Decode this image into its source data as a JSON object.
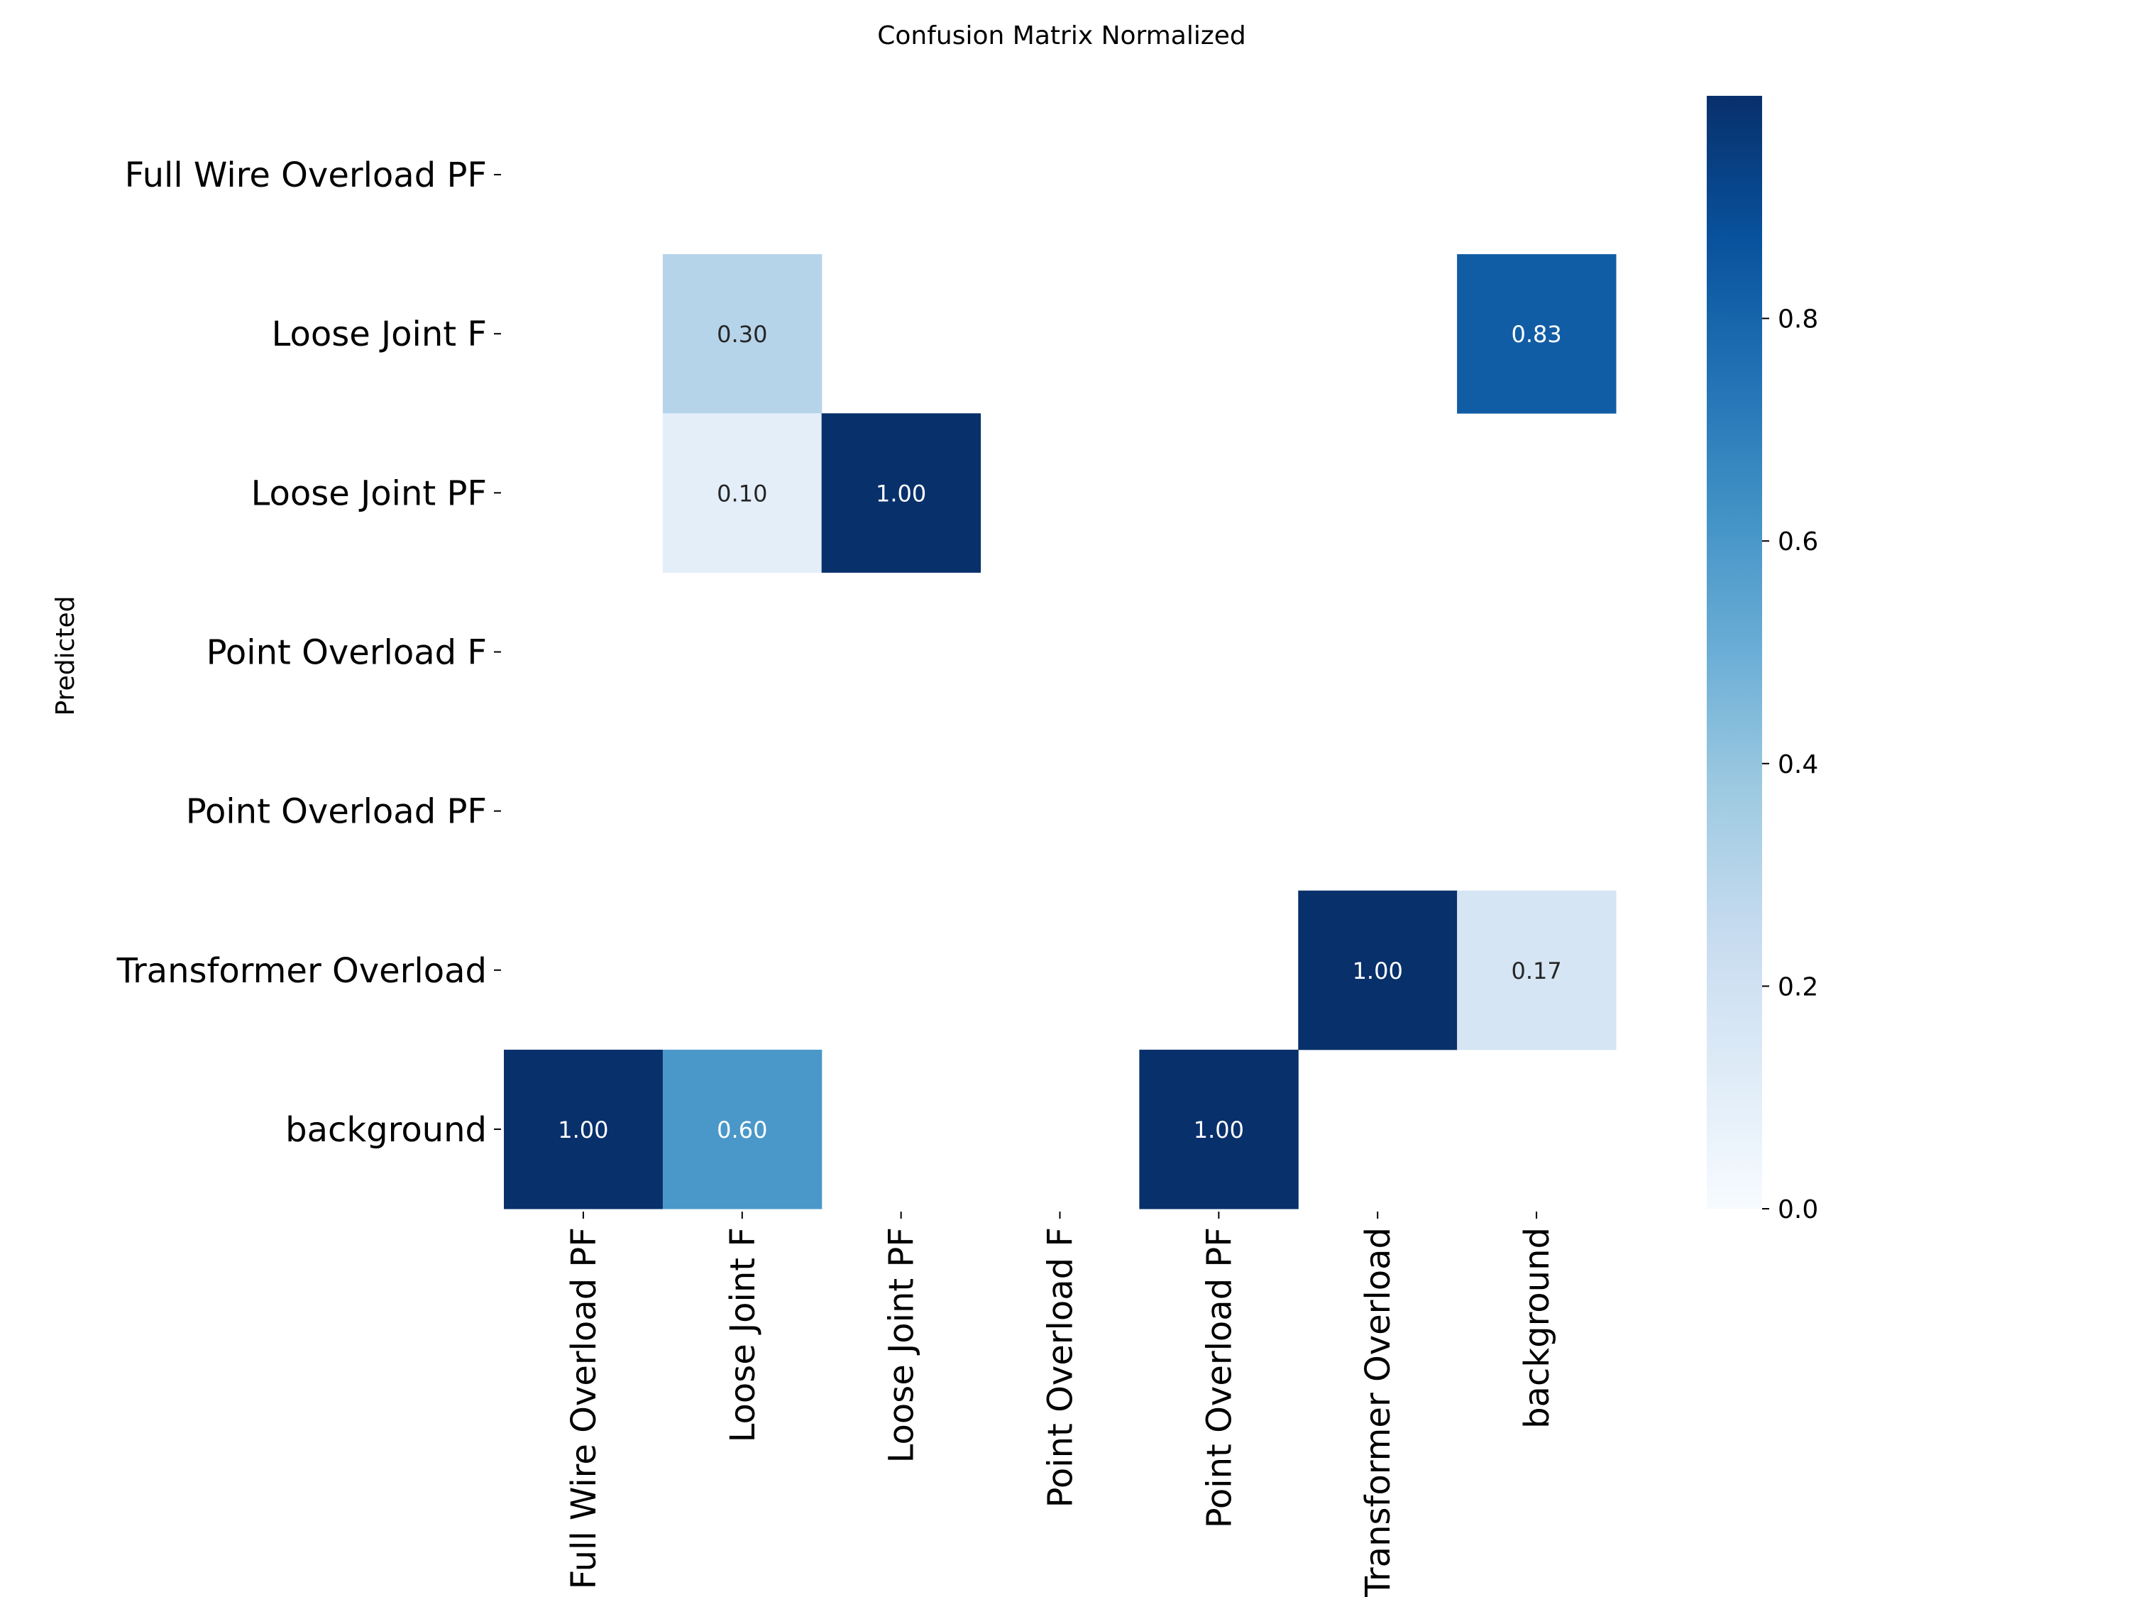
{
  "chart_data": {
    "type": "heatmap",
    "title": "Confusion Matrix Normalized",
    "xlabel": "",
    "ylabel": "Predicted",
    "x_categories": [
      "Full Wire Overload PF",
      "Loose Joint F",
      "Loose Joint PF",
      "Point Overload F",
      "Point Overload PF",
      "Transformer Overload",
      "background"
    ],
    "y_categories": [
      "Full Wire Overload PF",
      "Loose Joint F",
      "Loose Joint PF",
      "Point Overload F",
      "Point Overload PF",
      "Transformer Overload",
      "background"
    ],
    "matrix": [
      [
        null,
        null,
        null,
        null,
        null,
        null,
        null
      ],
      [
        null,
        0.3,
        null,
        null,
        null,
        null,
        0.83
      ],
      [
        null,
        0.1,
        1.0,
        null,
        null,
        null,
        null
      ],
      [
        null,
        null,
        null,
        null,
        null,
        null,
        null
      ],
      [
        null,
        null,
        null,
        null,
        null,
        null,
        null
      ],
      [
        null,
        null,
        null,
        null,
        null,
        1.0,
        0.17
      ],
      [
        1.0,
        0.6,
        null,
        null,
        1.0,
        null,
        null
      ]
    ],
    "colorbar": {
      "range": [
        0.0,
        1.0
      ],
      "ticks": [
        "0.0",
        "0.2",
        "0.4",
        "0.6",
        "0.8"
      ],
      "colormap": "Blues"
    },
    "grid": false
  }
}
